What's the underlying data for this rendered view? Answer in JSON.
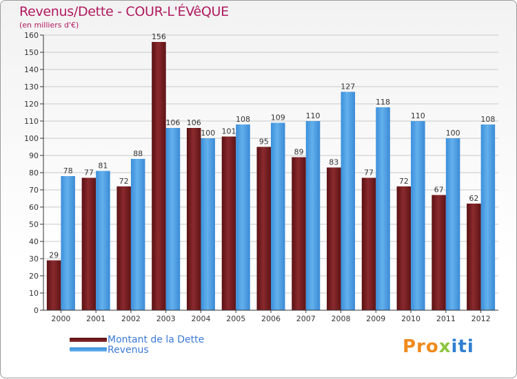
{
  "title": "Revenus/Dette - COUR-L'ÉVêQUE",
  "subtitle": "(en milliers d'€)",
  "logo": {
    "part1": "Pro",
    "part2": "x",
    "part3": "iti"
  },
  "colors": {
    "debt": "#7a1e22",
    "revenue": "#4f9ee4",
    "axis": "#333333",
    "grid": "#c8c8c8"
  },
  "chart_data": {
    "type": "bar",
    "title": "Revenus/Dette - COUR-L'ÉVêQUE",
    "ylabel": "(en milliers d'€)",
    "xlabel": "",
    "categories": [
      "2000",
      "2001",
      "2002",
      "2003",
      "2004",
      "2005",
      "2006",
      "2007",
      "2008",
      "2009",
      "2010",
      "2011",
      "2012"
    ],
    "series": [
      {
        "name": "Montant de la Dette",
        "values": [
          29,
          77,
          72,
          156,
          106,
          101,
          95,
          89,
          83,
          77,
          72,
          67,
          62
        ]
      },
      {
        "name": "Revenus",
        "values": [
          78,
          81,
          88,
          106,
          100,
          108,
          109,
          110,
          127,
          118,
          110,
          100,
          108
        ]
      }
    ],
    "ylim": [
      0,
      160
    ],
    "yticks": [
      0,
      10,
      20,
      30,
      40,
      50,
      60,
      70,
      80,
      90,
      100,
      110,
      120,
      130,
      140,
      150,
      160
    ],
    "grid": true,
    "legend": "bottom-left"
  }
}
